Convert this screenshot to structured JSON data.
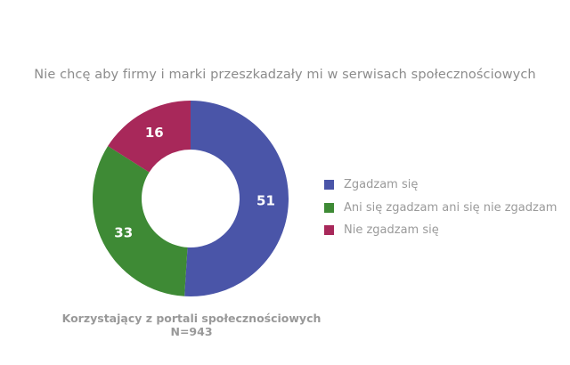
{
  "chart_data": {
    "type": "pie",
    "subtype": "donut",
    "title": "Nie chcę aby firmy i marki przeszkadzały mi w serwisach społecznościowych",
    "categories": [
      "Zgadzam się",
      "Ani się zgadzam ani się nie zgadzam",
      "Nie zgadzam się"
    ],
    "values": [
      51,
      33,
      16
    ],
    "colors": [
      "#4a55a8",
      "#3e8a35",
      "#a8285a"
    ],
    "data_labels": [
      "51",
      "33",
      "16"
    ],
    "legend_position": "right",
    "caption": [
      "Korzystający z portali społecznościowych",
      "N=943"
    ]
  },
  "title": "Nie chcę aby firmy i marki przeszkadzały mi w serwisach społecznościowych",
  "legend": {
    "items": [
      {
        "label": "Zgadzam się",
        "color": "#4a55a8"
      },
      {
        "label": "Ani się zgadzam ani się nie zgadzam",
        "color": "#3e8a35"
      },
      {
        "label": "Nie zgadzam się",
        "color": "#a8285a"
      }
    ]
  },
  "caption": {
    "line1": "Korzystający z portali społecznościowych",
    "line2": "N=943"
  }
}
